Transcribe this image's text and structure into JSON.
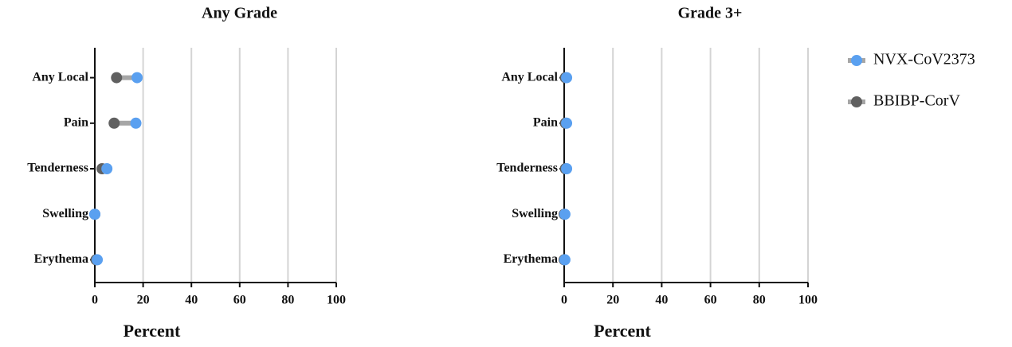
{
  "chart_data": [
    {
      "type": "dumbbell",
      "title": "Any Grade",
      "xlabel": "Percent",
      "categories": [
        "Any Local",
        "Pain",
        "Tenderness",
        "Swelling",
        "Erythema"
      ],
      "series": [
        {
          "name": "NVX-CoV2373",
          "color": "#5aa0f0",
          "values": [
            17.5,
            17,
            5,
            0,
            1
          ]
        },
        {
          "name": "BBIBP-CorV",
          "color": "#606060",
          "values": [
            9,
            8,
            3,
            0,
            0.5
          ]
        }
      ],
      "xlim": [
        0,
        100
      ],
      "xticks": [
        0,
        20,
        40,
        60,
        80,
        100
      ],
      "grid": true
    },
    {
      "type": "dumbbell",
      "title": "Grade 3+",
      "xlabel": "Percent",
      "categories": [
        "Any Local",
        "Pain",
        "Tenderness",
        "Swelling",
        "Erythema"
      ],
      "series": [
        {
          "name": "NVX-CoV2373",
          "color": "#5aa0f0",
          "values": [
            1,
            1,
            1,
            0.3,
            0.3
          ]
        },
        {
          "name": "BBIBP-CorV",
          "color": "#606060",
          "values": [
            0.5,
            0.5,
            0.5,
            0,
            0
          ]
        }
      ],
      "xlim": [
        0,
        100
      ],
      "xticks": [
        0,
        20,
        40,
        60,
        80,
        100
      ],
      "grid": true
    }
  ]
}
